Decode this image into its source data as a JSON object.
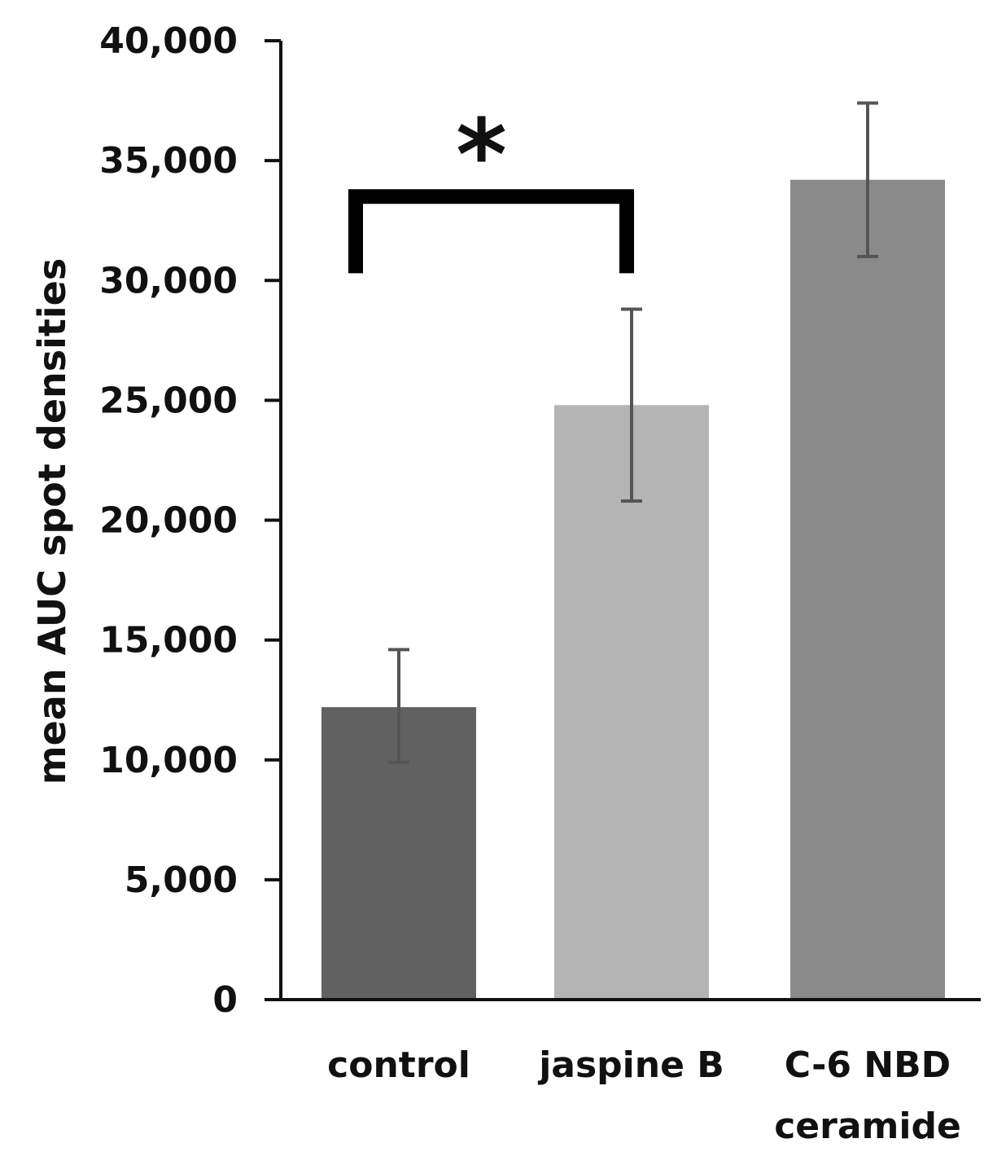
{
  "chart_data": {
    "type": "bar",
    "categories": [
      "control",
      "jaspine B",
      "C-6 NBD ceramide"
    ],
    "category_lines": [
      [
        "control"
      ],
      [
        "jaspine B"
      ],
      [
        "C-6 NBD",
        "ceramide"
      ]
    ],
    "values": [
      12200,
      24800,
      34200
    ],
    "error_low": [
      9900,
      20800,
      31000
    ],
    "error_high": [
      14600,
      28800,
      37400
    ],
    "bar_colors": [
      "#616161",
      "#b4b4b4",
      "#8a8a8a"
    ],
    "error_color": "#555555",
    "title": "",
    "xlabel": "",
    "ylabel": "mean AUC spot densities",
    "ylim": [
      0,
      40000
    ],
    "yticks": [
      0,
      5000,
      10000,
      15000,
      20000,
      25000,
      30000,
      35000,
      40000
    ],
    "ytick_labels": [
      "0",
      "5,000",
      "10,000",
      "15,000",
      "20,000",
      "25,000",
      "30,000",
      "35,000",
      "40,000"
    ],
    "grid": false,
    "legend": "none",
    "significance": {
      "between": [
        "control",
        "jaspine B"
      ],
      "bracket_level": 33500,
      "bracket_drop_to": 30300,
      "symbol": "*"
    }
  }
}
